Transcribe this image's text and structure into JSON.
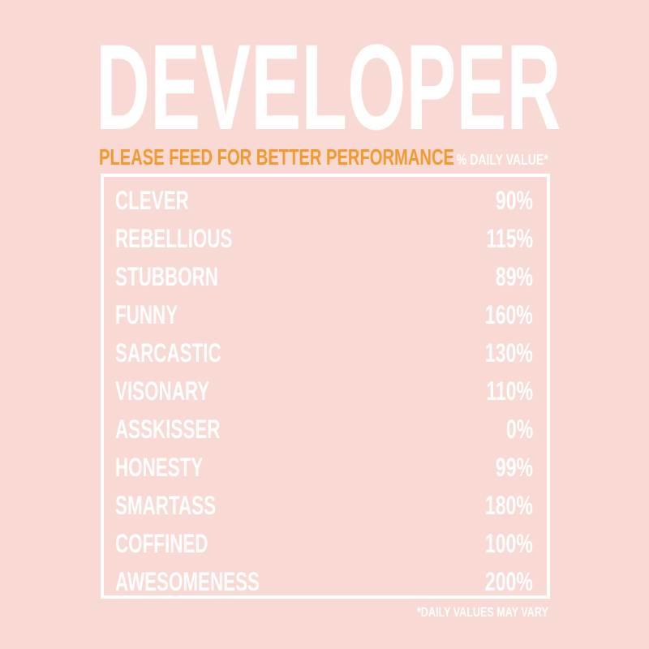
{
  "colors": {
    "background": "#f9d9d4",
    "text": "#ffffff",
    "accent": "#f29a2e"
  },
  "title": "DEVELOPER",
  "subtitle": "PLEASE FEED FOR BETTER PERFORMANCE",
  "daily_value_header": "% DAILY VALUE*",
  "rows": [
    {
      "label": "CLEVER",
      "value": "90%"
    },
    {
      "label": "REBELLIOUS",
      "value": "115%"
    },
    {
      "label": "STUBBORN",
      "value": "89%"
    },
    {
      "label": "FUNNY",
      "value": "160%"
    },
    {
      "label": "SARCASTIC",
      "value": "130%"
    },
    {
      "label": "VISONARY",
      "value": "110%"
    },
    {
      "label": "ASSKISSER",
      "value": "0%"
    },
    {
      "label": "HONESTY",
      "value": "99%"
    },
    {
      "label": "SMARTASS",
      "value": "180%"
    },
    {
      "label": "COFFINED",
      "value": "100%"
    },
    {
      "label": "AWESOMENESS",
      "value": "200%"
    }
  ],
  "footnote": "*DAILY VALUES MAY VARY"
}
